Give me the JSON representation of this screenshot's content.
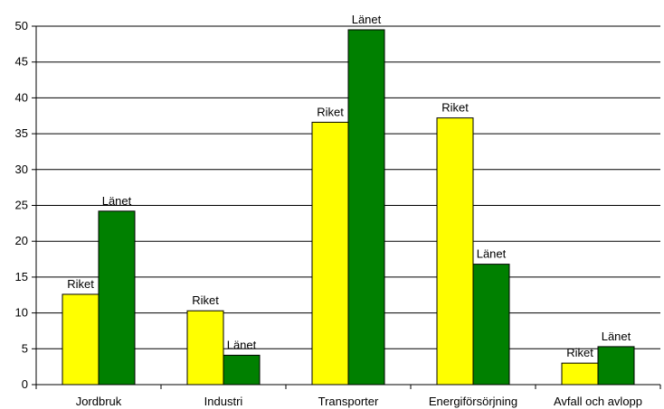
{
  "chart_data": {
    "type": "bar",
    "categories": [
      "Jordbruk",
      "Industri",
      "Transporter",
      "Energiförsörjning",
      "Avfall och avlopp"
    ],
    "series": [
      {
        "name": "Riket",
        "color": "#ffff00",
        "values": [
          12.6,
          10.3,
          36.6,
          37.2,
          3.0
        ],
        "labels": [
          "Riket",
          "Riket",
          "Riket",
          "Riket",
          "Riket"
        ]
      },
      {
        "name": "Länet",
        "color": "#008000",
        "values": [
          24.2,
          4.1,
          49.5,
          16.8,
          5.3
        ],
        "labels": [
          "Länet",
          "Länet",
          "Länet",
          "Länet",
          "Länet"
        ]
      }
    ],
    "yticks": [
      "0",
      "5",
      "10",
      "15",
      "20",
      "25",
      "30",
      "35",
      "40",
      "45",
      "50"
    ],
    "ylim": [
      0,
      50
    ],
    "grid": true,
    "legend": "none",
    "title": "",
    "xlabel": "",
    "ylabel": ""
  }
}
